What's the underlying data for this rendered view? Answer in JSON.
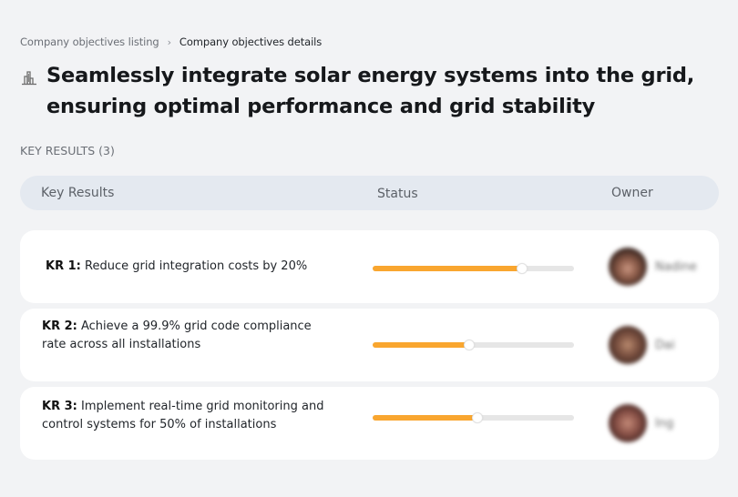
{
  "breadcrumb": {
    "parent": "Company objectives listing",
    "separator": "›",
    "current": "Company objectives details"
  },
  "objective": {
    "icon": "building-chart-icon",
    "title": "Seamlessly integrate solar energy systems into the grid, ensuring optimal performance and grid stability"
  },
  "key_results_section": {
    "label": "KEY RESULTS (3)",
    "count": 3
  },
  "table": {
    "columns": [
      "Key Results",
      "Status",
      "Owner"
    ]
  },
  "key_results": [
    {
      "id": "KR 1:",
      "text": "Reduce grid integration costs by 20%",
      "progress": 74,
      "owner": {
        "name": "Nadine",
        "avatar_color": "#5a3a2e"
      }
    },
    {
      "id": "KR 2:",
      "text": "Achieve a 99.9% grid code compliance rate across all installations",
      "progress": 48,
      "owner": {
        "name": "Dai",
        "avatar_color": "#6b4a3a"
      }
    },
    {
      "id": "KR 3:",
      "text": "Implement real-time grid monitoring and control systems for 50% of installations",
      "progress": 52,
      "owner": {
        "name": "Ing",
        "avatar_color": "#7a4a40"
      }
    }
  ],
  "colors": {
    "accent": "#f9a62f",
    "track": "#e6e6e6",
    "header_bg": "#e4e9f0",
    "page_bg": "#f2f3f5"
  }
}
